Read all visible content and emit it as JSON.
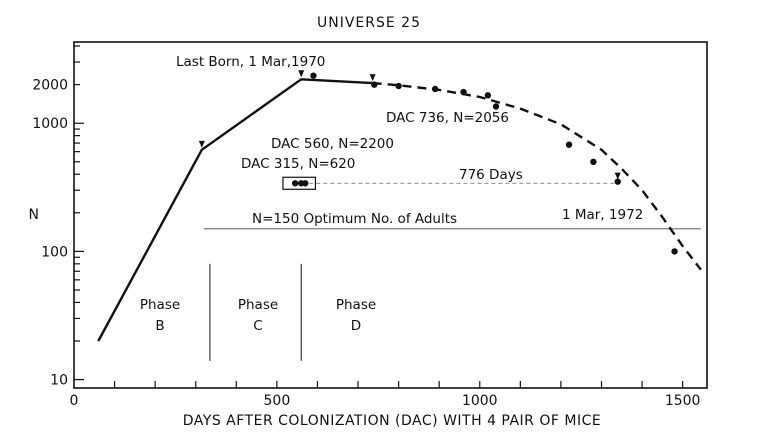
{
  "chart_data": {
    "type": "line",
    "title": "UNIVERSE 25",
    "xlabel": "DAYS AFTER COLONIZATION (DAC) WITH 4 PAIR OF MICE",
    "ylabel": "N",
    "xlim": [
      0,
      1560
    ],
    "ylim": [
      8.6,
      4300
    ],
    "yscale": "log",
    "grid": false,
    "x_ticks": [
      0,
      500,
      1000,
      1500
    ],
    "y_ticks": [
      {
        "value": 10,
        "label": "10"
      },
      {
        "value": 100,
        "label": "100"
      },
      {
        "value": 1000,
        "label": "1000"
      },
      {
        "value": 2000,
        "label": "2000"
      }
    ],
    "series": [
      {
        "style": "solid",
        "x": [
          60,
          315,
          560,
          736
        ],
        "y": [
          20,
          620,
          2200,
          2056
        ]
      },
      {
        "style": "dashed",
        "x": [
          736,
          800,
          900,
          1000,
          1100,
          1200,
          1300,
          1350,
          1400,
          1450,
          1500,
          1545
        ],
        "y": [
          2056,
          1980,
          1820,
          1600,
          1300,
          980,
          620,
          440,
          300,
          185,
          110,
          72
        ]
      },
      {
        "style": "points",
        "x": [
          590,
          740,
          800,
          890,
          960,
          1020,
          1040,
          1220,
          1280,
          1340,
          1480,
          545,
          560,
          570
        ],
        "y": [
          2350,
          2000,
          1950,
          1850,
          1750,
          1650,
          1350,
          680,
          500,
          350,
          100,
          340,
          340,
          340
        ]
      }
    ],
    "reference_line": {
      "y": 150
    },
    "phase_dividers": [
      335,
      560
    ],
    "annotations": [
      {
        "text": "Last Born, 1 Mar,1970"
      },
      {
        "text": "DAC 736, N=2056"
      },
      {
        "text": "DAC 560, N=2200"
      },
      {
        "text": "DAC 315, N=620"
      },
      {
        "text": "776 Days"
      },
      {
        "text": "N=150  Optimum No. of Adults"
      },
      {
        "text": "1 Mar, 1972"
      }
    ],
    "phases": [
      {
        "line1": "Phase",
        "line2": "B"
      },
      {
        "line1": "Phase",
        "line2": "C"
      },
      {
        "line1": "Phase",
        "line2": "D"
      }
    ]
  }
}
